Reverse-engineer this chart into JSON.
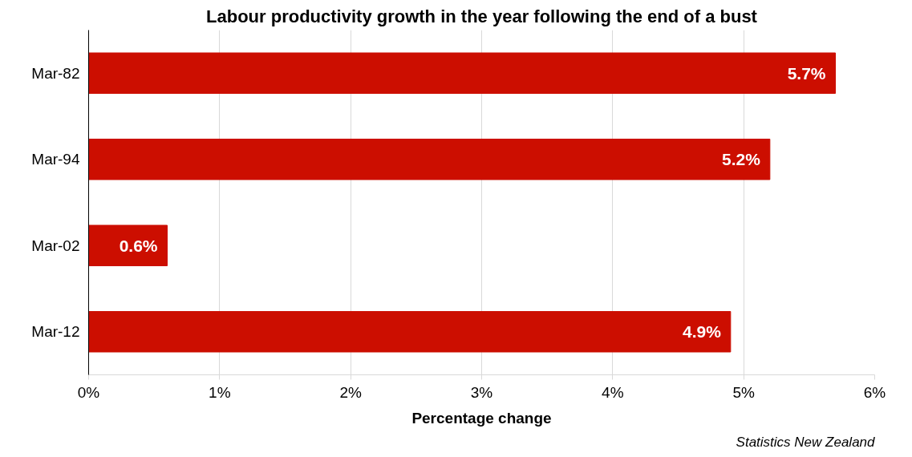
{
  "chart_data": {
    "type": "bar",
    "orientation": "horizontal",
    "title": "Labour productivity growth in the year following the end of a bust",
    "xlabel": "Percentage change",
    "categories": [
      "Mar-82",
      "Mar-94",
      "Mar-02",
      "Mar-12"
    ],
    "values": [
      5.7,
      5.2,
      0.6,
      4.9
    ],
    "color": "#cc0e00",
    "value_labels": [
      "5.7%",
      "5.2%",
      "0.6%",
      "4.9%"
    ],
    "xlim": [
      0,
      6
    ],
    "xticks": [
      {
        "value": 0,
        "label": "0%"
      },
      {
        "value": 1,
        "label": "1%"
      },
      {
        "value": 2,
        "label": "2%"
      },
      {
        "value": 3,
        "label": "3%"
      },
      {
        "value": 4,
        "label": "4%"
      },
      {
        "value": 5,
        "label": "5%"
      },
      {
        "value": 6,
        "label": "6%"
      }
    ],
    "grid": "x",
    "annotations": [
      "Statistics New Zealand"
    ]
  }
}
